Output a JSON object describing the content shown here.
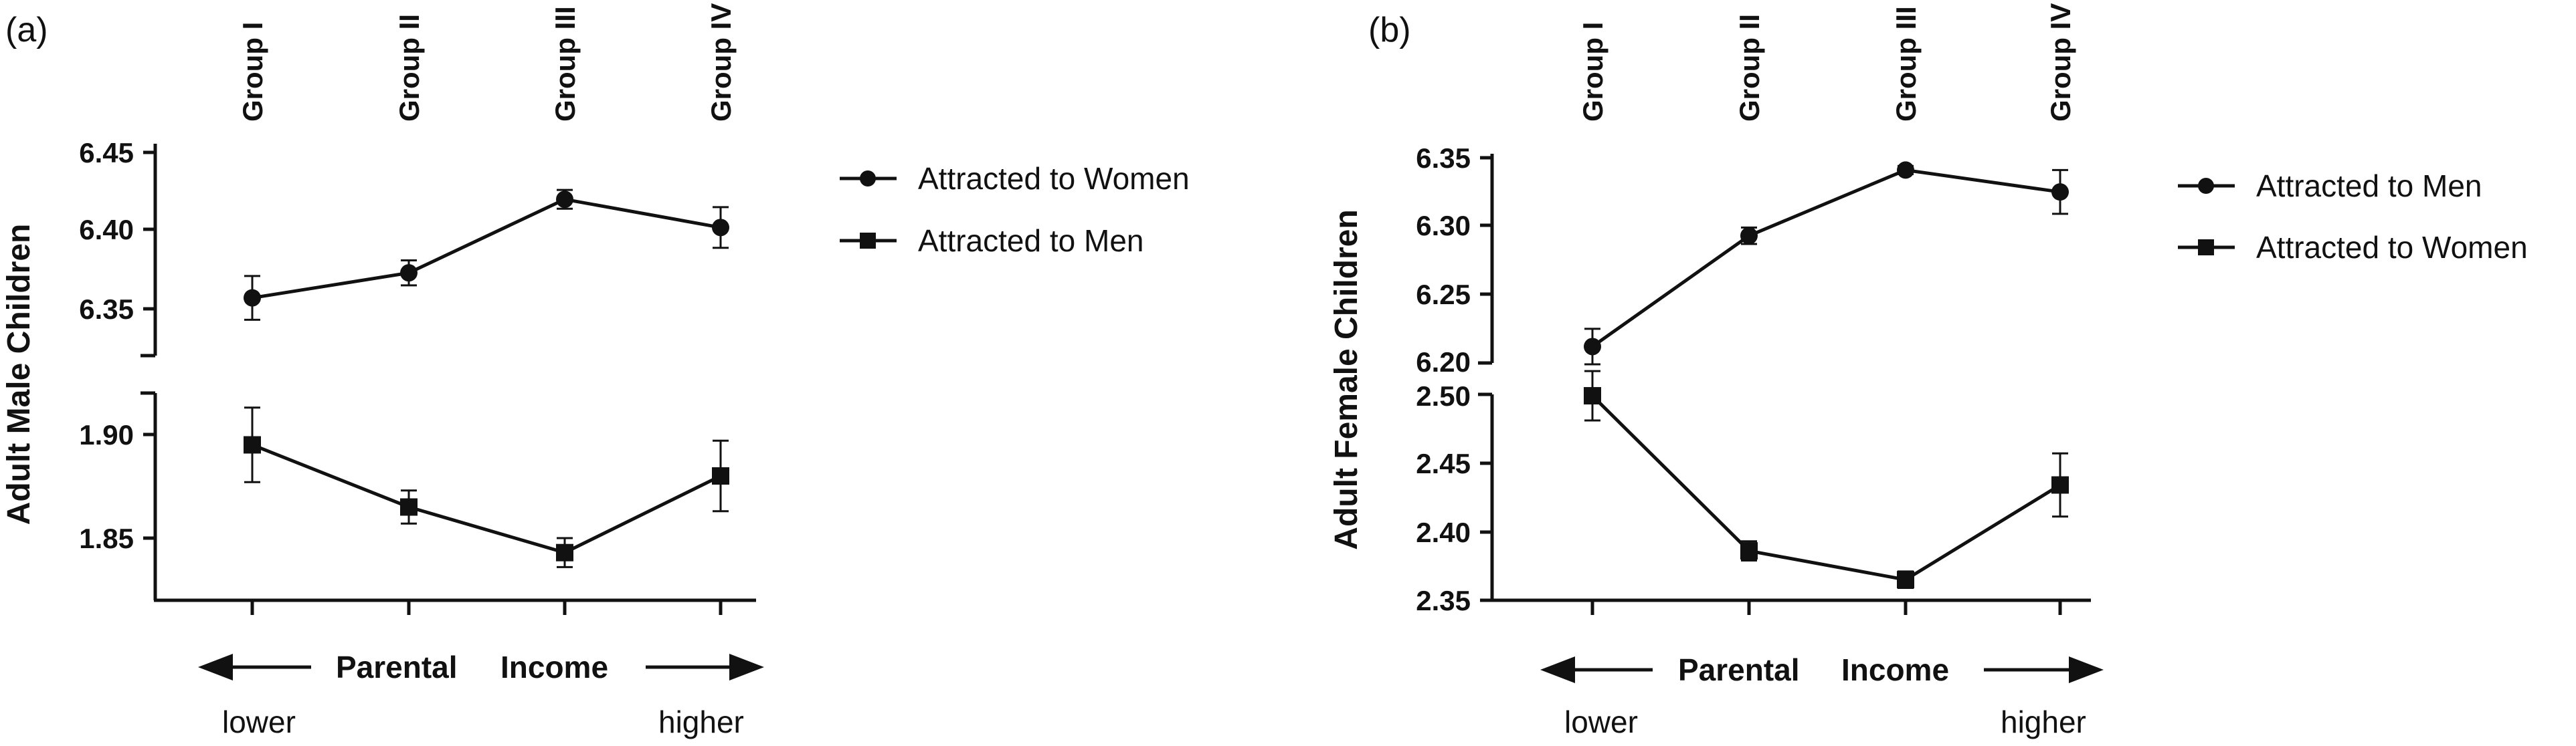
{
  "chart_data": [
    {
      "type": "line",
      "panel_label": "(a)",
      "ylabel": "Adult Male Children",
      "categories": [
        "Group I",
        "Group II",
        "Group III",
        "Group IV"
      ],
      "broken_y_axis": true,
      "upper_segment": {
        "ylim": [
          6.33,
          6.45
        ],
        "ticks": [
          "6.45",
          "6.40",
          "6.35"
        ]
      },
      "lower_segment": {
        "ylim": [
          1.82,
          1.92
        ],
        "ticks": [
          "1.90",
          "1.85"
        ]
      },
      "series": [
        {
          "name": "Attracted to Women",
          "marker": "circle",
          "segment": "upper",
          "values": [
            6.357,
            6.373,
            6.42,
            6.402
          ],
          "errors": [
            0.014,
            0.008,
            0.006,
            0.013
          ]
        },
        {
          "name": "Attracted to Men",
          "marker": "square",
          "segment": "lower",
          "values": [
            1.895,
            1.865,
            1.843,
            1.88
          ],
          "errors": [
            0.018,
            0.008,
            0.007,
            0.017
          ]
        }
      ],
      "x_annotation": {
        "text_left": "Parental",
        "text_right": "Income",
        "lower": "lower",
        "higher": "higher"
      }
    },
    {
      "type": "line",
      "panel_label": "(b)",
      "ylabel": "Adult Female Children",
      "categories": [
        "Group I",
        "Group II",
        "Group III",
        "Group IV"
      ],
      "broken_y_axis": true,
      "upper_segment": {
        "ylim": [
          6.2,
          6.35
        ],
        "ticks": [
          "6.35",
          "6.30",
          "6.25",
          "6.20"
        ]
      },
      "lower_segment": {
        "ylim": [
          2.35,
          2.5
        ],
        "ticks": [
          "2.50",
          "2.45",
          "2.40",
          "2.35"
        ]
      },
      "series": [
        {
          "name": "Attracted to Men",
          "marker": "circle",
          "segment": "upper",
          "values": [
            6.212,
            6.293,
            6.341,
            6.325
          ],
          "errors": [
            0.013,
            0.006,
            0.003,
            0.016
          ]
        },
        {
          "name": "Attracted to Women",
          "marker": "square",
          "segment": "lower",
          "values": [
            2.499,
            2.386,
            2.365,
            2.434
          ],
          "errors": [
            0.018,
            0.007,
            0.006,
            0.023
          ]
        }
      ],
      "x_annotation": {
        "text_left": "Parental",
        "text_right": "Income",
        "lower": "lower",
        "higher": "higher"
      }
    }
  ]
}
